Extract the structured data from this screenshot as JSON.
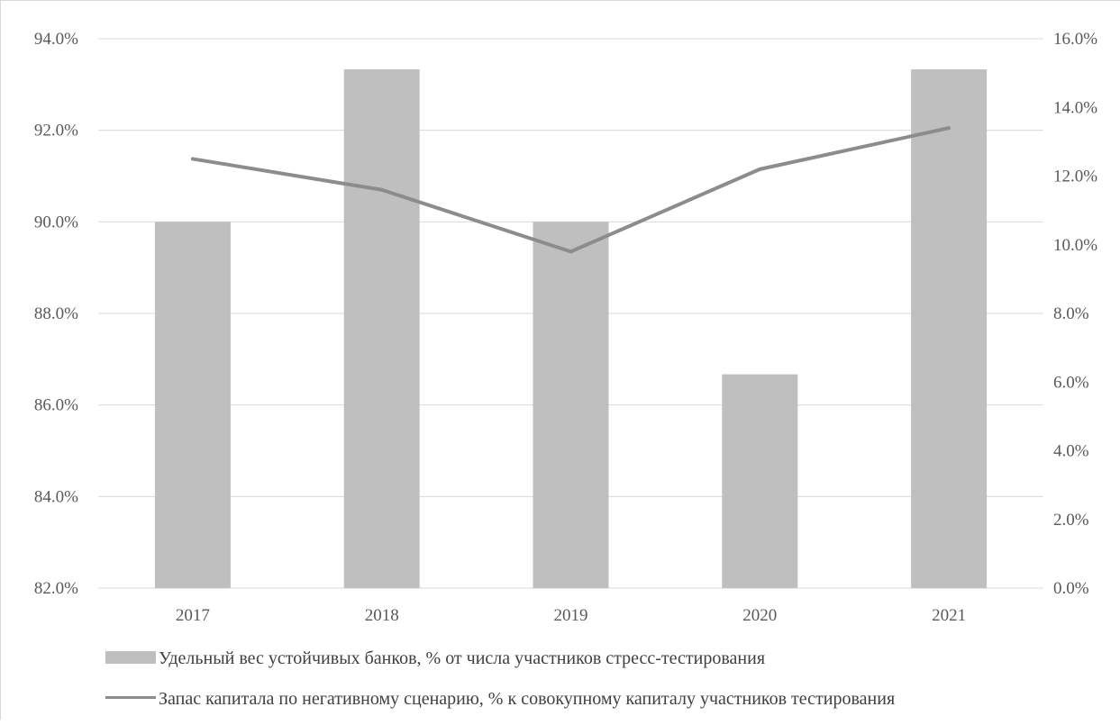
{
  "chart_data": {
    "type": "bar",
    "categories": [
      "2017",
      "2018",
      "2019",
      "2020",
      "2021"
    ],
    "series": [
      {
        "name": "Удельный вес устойчивых банков, % от числа участников стресс-тестирования",
        "kind": "bar",
        "axis": "left",
        "color": "#bfbfbf",
        "values": [
          90.0,
          93.33,
          90.0,
          86.67,
          93.33
        ]
      },
      {
        "name": "Запас капитала по негативному сценарию, % к совокупному капиталу участников тестирования",
        "kind": "line",
        "axis": "right",
        "color": "#8c8c8c",
        "values": [
          12.5,
          11.6,
          9.8,
          12.2,
          13.4
        ]
      }
    ],
    "y_left": {
      "lim": [
        82,
        94
      ],
      "ticks": [
        "82.0%",
        "84.0%",
        "86.0%",
        "88.0%",
        "90.0%",
        "92.0%",
        "94.0%"
      ]
    },
    "y_right": {
      "lim": [
        0,
        16
      ],
      "ticks": [
        "0.0%",
        "2.0%",
        "4.0%",
        "6.0%",
        "8.0%",
        "10.0%",
        "12.0%",
        "14.0%",
        "16.0%"
      ]
    },
    "grid": true,
    "legend_position": "bottom-left"
  }
}
